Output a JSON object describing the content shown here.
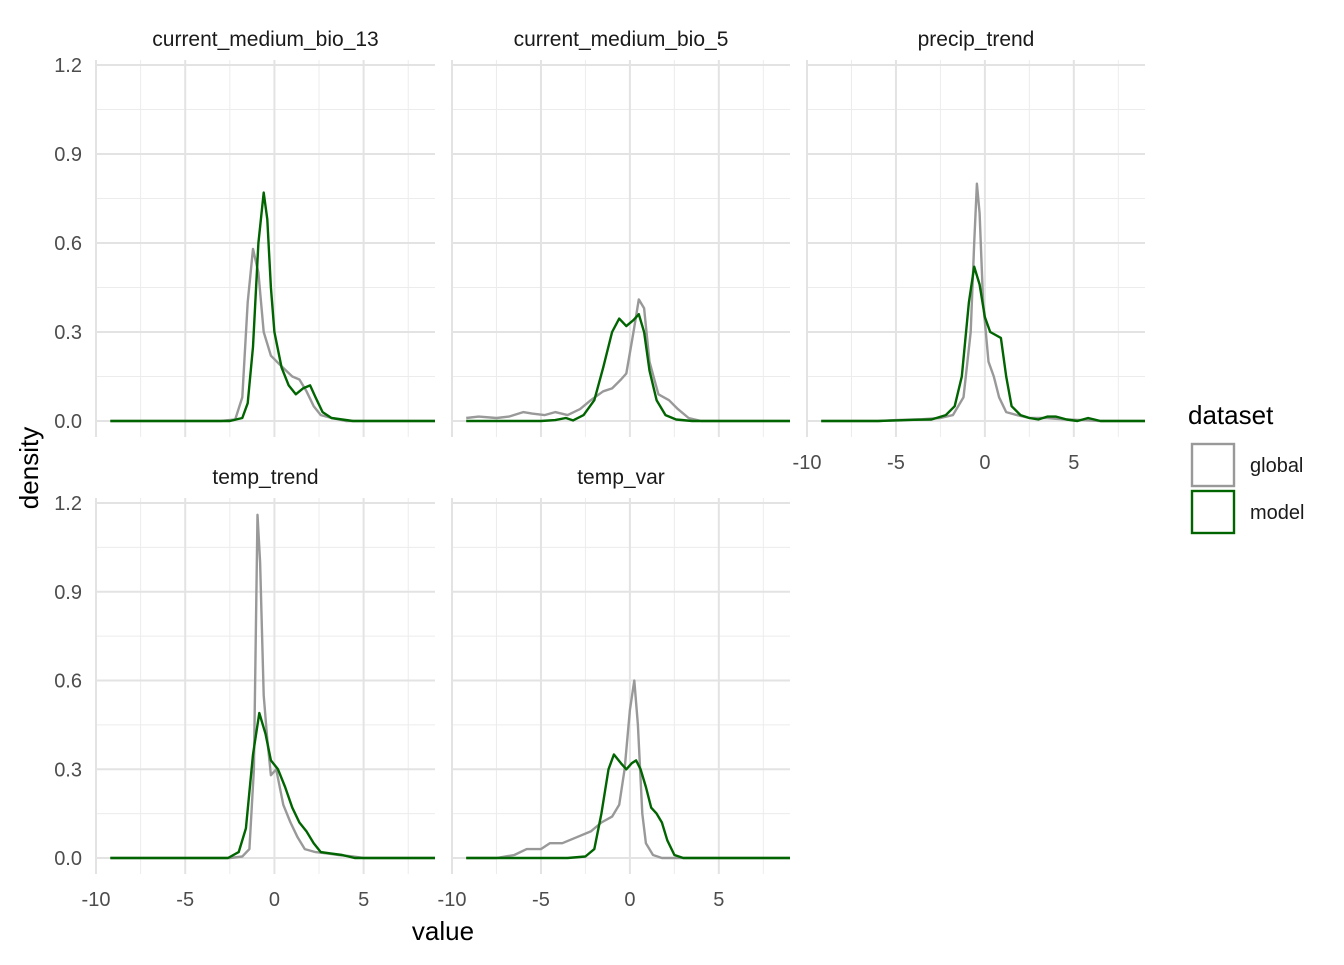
{
  "chart_data": {
    "type": "line",
    "subtype": "faceted density",
    "xlabel": "value",
    "ylabel": "density",
    "xlim": [
      -10,
      9
    ],
    "ylim": [
      0,
      1.2
    ],
    "x_ticks": [
      -10,
      -5,
      0,
      5
    ],
    "y_ticks": [
      0.0,
      0.3,
      0.6,
      0.9,
      1.2
    ],
    "y_tick_labels": [
      "0.0",
      "0.3",
      "0.6",
      "0.9",
      "1.2"
    ],
    "grid": true,
    "legend": {
      "title": "dataset",
      "position": "right",
      "entries": [
        {
          "name": "global",
          "color": "#999999"
        },
        {
          "name": "model",
          "color": "#006400"
        }
      ]
    },
    "facets": [
      {
        "title": "current_medium_bio_13",
        "series": [
          {
            "name": "global",
            "points": [
              [
                -9.2,
                0
              ],
              [
                -3,
                0
              ],
              [
                -2.2,
                0.005
              ],
              [
                -1.8,
                0.08
              ],
              [
                -1.5,
                0.4
              ],
              [
                -1.2,
                0.58
              ],
              [
                -0.9,
                0.5
              ],
              [
                -0.6,
                0.3
              ],
              [
                -0.2,
                0.22
              ],
              [
                0.3,
                0.19
              ],
              [
                1,
                0.15
              ],
              [
                1.4,
                0.14
              ],
              [
                1.8,
                0.1
              ],
              [
                2.2,
                0.05
              ],
              [
                2.6,
                0.02
              ],
              [
                3.2,
                0.01
              ],
              [
                4,
                0
              ],
              [
                9,
                0
              ]
            ]
          },
          {
            "name": "model",
            "points": [
              [
                -9.2,
                0
              ],
              [
                -2.5,
                0
              ],
              [
                -1.8,
                0.01
              ],
              [
                -1.5,
                0.06
              ],
              [
                -1.2,
                0.25
              ],
              [
                -0.9,
                0.6
              ],
              [
                -0.6,
                0.77
              ],
              [
                -0.4,
                0.68
              ],
              [
                -0.2,
                0.45
              ],
              [
                0,
                0.3
              ],
              [
                0.4,
                0.18
              ],
              [
                0.8,
                0.12
              ],
              [
                1.2,
                0.09
              ],
              [
                1.6,
                0.11
              ],
              [
                2,
                0.12
              ],
              [
                2.3,
                0.08
              ],
              [
                2.7,
                0.03
              ],
              [
                3.2,
                0.01
              ],
              [
                3.8,
                0.005
              ],
              [
                4.4,
                0
              ],
              [
                9,
                0
              ]
            ]
          }
        ]
      },
      {
        "title": "current_medium_bio_5",
        "series": [
          {
            "name": "global",
            "points": [
              [
                -9.2,
                0.01
              ],
              [
                -8.5,
                0.015
              ],
              [
                -7.5,
                0.01
              ],
              [
                -6.8,
                0.015
              ],
              [
                -6,
                0.03
              ],
              [
                -5.5,
                0.025
              ],
              [
                -4.8,
                0.02
              ],
              [
                -4.2,
                0.03
              ],
              [
                -3.5,
                0.02
              ],
              [
                -2.8,
                0.04
              ],
              [
                -2.2,
                0.07
              ],
              [
                -1.5,
                0.1
              ],
              [
                -1,
                0.11
              ],
              [
                -0.5,
                0.14
              ],
              [
                -0.2,
                0.16
              ],
              [
                0.2,
                0.3
              ],
              [
                0.5,
                0.41
              ],
              [
                0.8,
                0.38
              ],
              [
                1.1,
                0.2
              ],
              [
                1.6,
                0.09
              ],
              [
                2.2,
                0.07
              ],
              [
                2.7,
                0.04
              ],
              [
                3.3,
                0.01
              ],
              [
                4,
                0
              ],
              [
                9,
                0
              ]
            ]
          },
          {
            "name": "model",
            "points": [
              [
                -9.2,
                0
              ],
              [
                -5,
                0
              ],
              [
                -4.2,
                0.003
              ],
              [
                -3.6,
                0.01
              ],
              [
                -3.2,
                0.002
              ],
              [
                -2.6,
                0.02
              ],
              [
                -2,
                0.07
              ],
              [
                -1.5,
                0.18
              ],
              [
                -1,
                0.3
              ],
              [
                -0.6,
                0.345
              ],
              [
                -0.2,
                0.32
              ],
              [
                0.2,
                0.34
              ],
              [
                0.5,
                0.36
              ],
              [
                0.8,
                0.3
              ],
              [
                1.1,
                0.17
              ],
              [
                1.5,
                0.07
              ],
              [
                2,
                0.02
              ],
              [
                2.6,
                0.005
              ],
              [
                3.5,
                0
              ],
              [
                9,
                0
              ]
            ]
          }
        ]
      },
      {
        "title": "precip_trend",
        "series": [
          {
            "name": "global",
            "points": [
              [
                -9.2,
                0
              ],
              [
                -6,
                0
              ],
              [
                -5,
                0.003
              ],
              [
                -3.5,
                0.006
              ],
              [
                -2.5,
                0.01
              ],
              [
                -1.8,
                0.02
              ],
              [
                -1.2,
                0.08
              ],
              [
                -0.8,
                0.3
              ],
              [
                -0.6,
                0.6
              ],
              [
                -0.45,
                0.8
              ],
              [
                -0.3,
                0.7
              ],
              [
                -0.1,
                0.4
              ],
              [
                0.2,
                0.2
              ],
              [
                0.5,
                0.15
              ],
              [
                0.8,
                0.08
              ],
              [
                1.2,
                0.03
              ],
              [
                1.8,
                0.02
              ],
              [
                2.5,
                0.01
              ],
              [
                3.5,
                0.01
              ],
              [
                4.5,
                0.005
              ],
              [
                5.5,
                0.003
              ],
              [
                6.5,
                0
              ],
              [
                9,
                0
              ]
            ]
          },
          {
            "name": "model",
            "points": [
              [
                -9.2,
                0
              ],
              [
                -6,
                0
              ],
              [
                -5,
                0.002
              ],
              [
                -4,
                0.004
              ],
              [
                -3,
                0.005
              ],
              [
                -2.2,
                0.02
              ],
              [
                -1.7,
                0.05
              ],
              [
                -1.3,
                0.15
              ],
              [
                -0.9,
                0.4
              ],
              [
                -0.6,
                0.52
              ],
              [
                -0.3,
                0.46
              ],
              [
                0,
                0.35
              ],
              [
                0.3,
                0.3
              ],
              [
                0.6,
                0.29
              ],
              [
                0.9,
                0.28
              ],
              [
                1.2,
                0.15
              ],
              [
                1.5,
                0.05
              ],
              [
                2,
                0.02
              ],
              [
                2.5,
                0.01
              ],
              [
                3,
                0.005
              ],
              [
                3.5,
                0.015
              ],
              [
                4,
                0.015
              ],
              [
                4.6,
                0.005
              ],
              [
                5.2,
                0
              ],
              [
                5.8,
                0.01
              ],
              [
                6.5,
                0
              ],
              [
                9,
                0
              ]
            ]
          }
        ]
      },
      {
        "title": "temp_trend",
        "series": [
          {
            "name": "global",
            "points": [
              [
                -9.2,
                0
              ],
              [
                -2.5,
                0
              ],
              [
                -1.8,
                0.005
              ],
              [
                -1.4,
                0.03
              ],
              [
                -1.15,
                0.3
              ],
              [
                -0.95,
                1.16
              ],
              [
                -0.8,
                1
              ],
              [
                -0.6,
                0.55
              ],
              [
                -0.4,
                0.4
              ],
              [
                -0.2,
                0.28
              ],
              [
                0.1,
                0.3
              ],
              [
                0.5,
                0.18
              ],
              [
                0.9,
                0.12
              ],
              [
                1.3,
                0.07
              ],
              [
                1.7,
                0.03
              ],
              [
                2.3,
                0.02
              ],
              [
                3,
                0.015
              ],
              [
                3.6,
                0.01
              ],
              [
                4.4,
                0.005
              ],
              [
                5,
                0
              ],
              [
                9,
                0
              ]
            ]
          },
          {
            "name": "model",
            "points": [
              [
                -9.2,
                0
              ],
              [
                -2.6,
                0
              ],
              [
                -2,
                0.02
              ],
              [
                -1.6,
                0.1
              ],
              [
                -1.2,
                0.35
              ],
              [
                -0.85,
                0.49
              ],
              [
                -0.5,
                0.42
              ],
              [
                -0.2,
                0.33
              ],
              [
                0.2,
                0.3
              ],
              [
                0.6,
                0.24
              ],
              [
                1,
                0.17
              ],
              [
                1.4,
                0.12
              ],
              [
                1.8,
                0.09
              ],
              [
                2.2,
                0.05
              ],
              [
                2.6,
                0.02
              ],
              [
                3.2,
                0.015
              ],
              [
                3.8,
                0.01
              ],
              [
                4.5,
                0
              ],
              [
                9,
                0
              ]
            ]
          }
        ]
      },
      {
        "title": "temp_var",
        "series": [
          {
            "name": "global",
            "points": [
              [
                -9.2,
                0
              ],
              [
                -7.5,
                0
              ],
              [
                -6.5,
                0.01
              ],
              [
                -5.8,
                0.03
              ],
              [
                -5,
                0.03
              ],
              [
                -4.5,
                0.05
              ],
              [
                -3.8,
                0.05
              ],
              [
                -3,
                0.07
              ],
              [
                -2.2,
                0.09
              ],
              [
                -1.6,
                0.12
              ],
              [
                -1,
                0.14
              ],
              [
                -0.6,
                0.18
              ],
              [
                -0.3,
                0.3
              ],
              [
                0,
                0.5
              ],
              [
                0.25,
                0.6
              ],
              [
                0.45,
                0.45
              ],
              [
                0.7,
                0.15
              ],
              [
                0.9,
                0.05
              ],
              [
                1.3,
                0.01
              ],
              [
                1.8,
                0
              ],
              [
                9,
                0
              ]
            ]
          },
          {
            "name": "model",
            "points": [
              [
                -9.2,
                0
              ],
              [
                -5,
                0
              ],
              [
                -3.5,
                0
              ],
              [
                -2.5,
                0.005
              ],
              [
                -2,
                0.03
              ],
              [
                -1.6,
                0.15
              ],
              [
                -1.2,
                0.3
              ],
              [
                -0.9,
                0.35
              ],
              [
                -0.5,
                0.32
              ],
              [
                -0.2,
                0.3
              ],
              [
                0.1,
                0.32
              ],
              [
                0.35,
                0.33
              ],
              [
                0.6,
                0.3
              ],
              [
                0.9,
                0.24
              ],
              [
                1.2,
                0.17
              ],
              [
                1.5,
                0.15
              ],
              [
                1.8,
                0.12
              ],
              [
                2.1,
                0.06
              ],
              [
                2.5,
                0.01
              ],
              [
                3,
                0
              ],
              [
                9,
                0
              ]
            ]
          }
        ]
      }
    ]
  }
}
